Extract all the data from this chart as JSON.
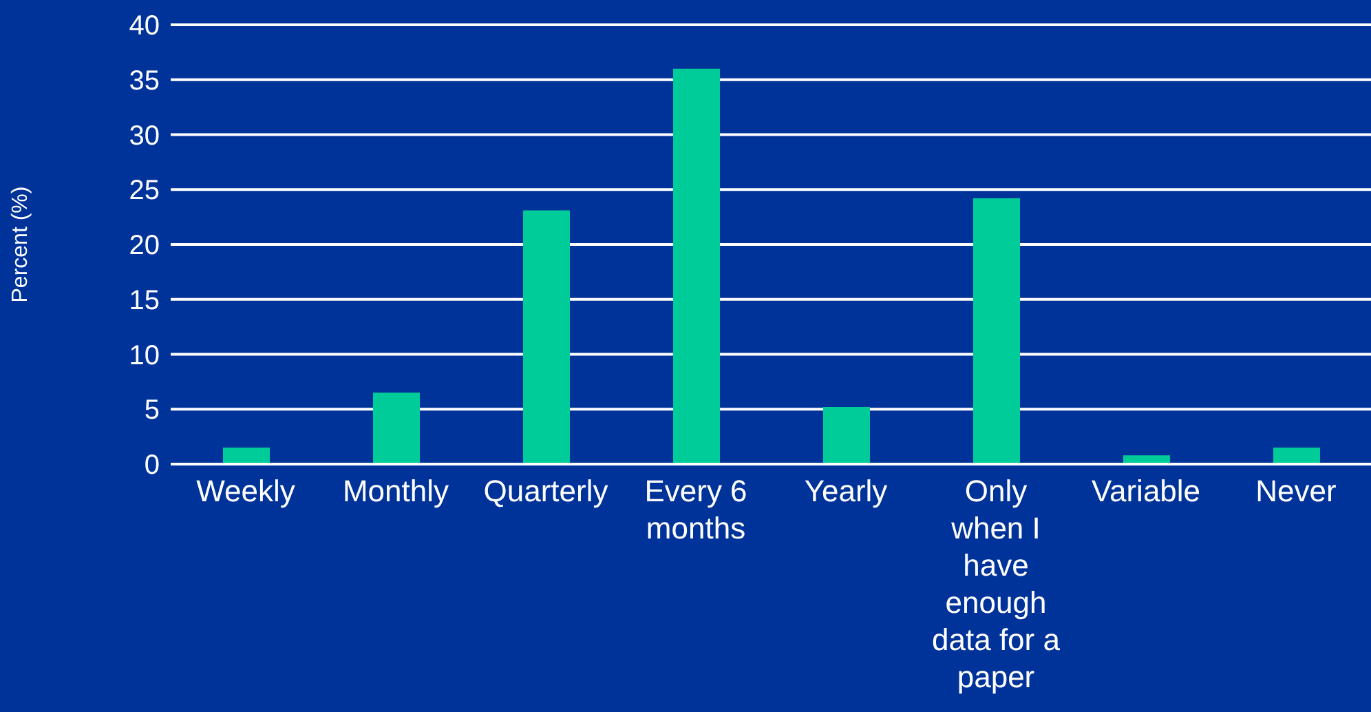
{
  "chart_data": {
    "type": "bar",
    "ylabel": "Percent (%)",
    "categories": [
      "Weekly",
      "Monthly",
      "Quarterly",
      "Every 6 months",
      "Yearly",
      "Only when I have enough data for a paper",
      "Variable",
      "Never"
    ],
    "values": [
      1.5,
      6.5,
      23.1,
      36.0,
      5.2,
      24.2,
      0.8,
      1.5
    ],
    "color": "#00cc99",
    "ylim": [
      0,
      40
    ],
    "yticks": [
      0,
      5,
      10,
      15,
      20,
      25,
      30,
      35,
      40
    ],
    "grid": "y"
  }
}
